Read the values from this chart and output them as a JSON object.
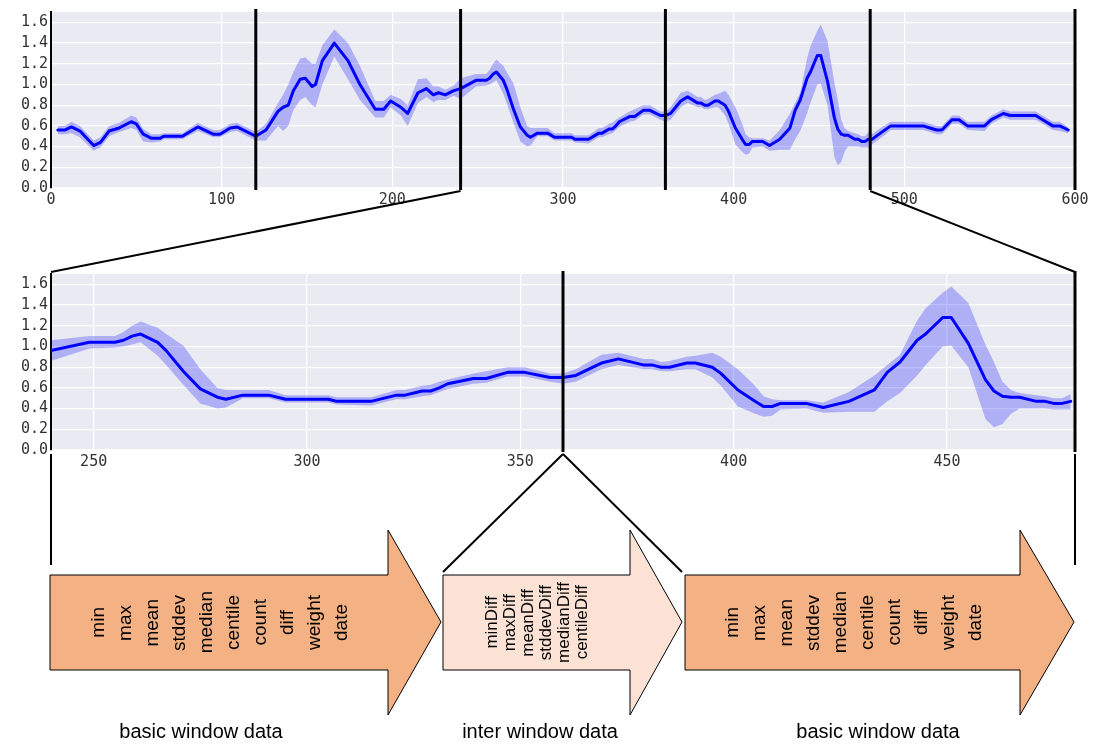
{
  "chart_data": [
    {
      "type": "line",
      "xlim": [
        0,
        600
      ],
      "xticks": [
        0,
        100,
        200,
        300,
        400,
        500,
        600
      ],
      "ylim": [
        0,
        1.7
      ],
      "yticks": [
        {
          "value": 0,
          "label": "0.0"
        },
        {
          "value": 0.2,
          "label": "0.2"
        },
        {
          "value": 0.4,
          "label": "0.4"
        },
        {
          "value": 0.6,
          "label": "0.6"
        },
        {
          "value": 0.8,
          "label": "0.8"
        },
        {
          "value": 1.0,
          "label": "1.0"
        },
        {
          "value": 1.2,
          "label": "1.2"
        },
        {
          "value": 1.4,
          "label": "1.4"
        },
        {
          "value": 1.6,
          "label": "1.6"
        }
      ],
      "grid": true,
      "ref_lines": [
        {
          "axis": "x",
          "value": 120
        },
        {
          "axis": "x",
          "value": 240
        },
        {
          "axis": "x",
          "value": 360
        },
        {
          "axis": "x",
          "value": 480
        },
        {
          "axis": "x",
          "value": 600
        }
      ],
      "series": [
        {
          "color": "#0000ff",
          "x": [
            4,
            8,
            12,
            17,
            25,
            29,
            34,
            40,
            47,
            50,
            54,
            59,
            64,
            66,
            77,
            86,
            95,
            99,
            105,
            109,
            120,
            126,
            133,
            136,
            139,
            142,
            146,
            149,
            153,
            155,
            159,
            166,
            174,
            181,
            190,
            195,
            199,
            205,
            209,
            215,
            220,
            224,
            227,
            231,
            236,
            240,
            249,
            255,
            257,
            259,
            261,
            265,
            267,
            271,
            275,
            279,
            281,
            285,
            291,
            295,
            305,
            307,
            315,
            321,
            323,
            327,
            329,
            331,
            333,
            339,
            342,
            347,
            351,
            357,
            360,
            363,
            369,
            373,
            379,
            381,
            383,
            385,
            389,
            391,
            395,
            397,
            401,
            405,
            407,
            409,
            411,
            417,
            421,
            427,
            433,
            436,
            439,
            443,
            445,
            449,
            451,
            455,
            459,
            461,
            463,
            465,
            467,
            471,
            473,
            475,
            477,
            479,
            481,
            486,
            492,
            511,
            515,
            519,
            522,
            528,
            532,
            537,
            547,
            551,
            558,
            562,
            577,
            582,
            587,
            591,
            596
          ],
          "values": [
            0.56,
            0.56,
            0.59,
            0.55,
            0.41,
            0.44,
            0.55,
            0.58,
            0.64,
            0.62,
            0.52,
            0.48,
            0.48,
            0.5,
            0.5,
            0.59,
            0.52,
            0.52,
            0.58,
            0.59,
            0.5,
            0.56,
            0.74,
            0.78,
            0.8,
            0.94,
            1.05,
            1.06,
            0.98,
            1.0,
            1.23,
            1.4,
            1.23,
            1.0,
            0.76,
            0.76,
            0.84,
            0.78,
            0.72,
            0.92,
            0.96,
            0.9,
            0.92,
            0.9,
            0.94,
            0.96,
            1.04,
            1.04,
            1.06,
            1.1,
            1.12,
            1.04,
            0.96,
            0.76,
            0.59,
            0.51,
            0.49,
            0.53,
            0.53,
            0.49,
            0.49,
            0.47,
            0.47,
            0.53,
            0.53,
            0.57,
            0.57,
            0.6,
            0.64,
            0.69,
            0.69,
            0.75,
            0.75,
            0.7,
            0.7,
            0.72,
            0.84,
            0.88,
            0.82,
            0.82,
            0.8,
            0.8,
            0.84,
            0.84,
            0.8,
            0.74,
            0.58,
            0.47,
            0.42,
            0.42,
            0.45,
            0.45,
            0.41,
            0.47,
            0.58,
            0.75,
            0.85,
            1.06,
            1.12,
            1.28,
            1.28,
            1.03,
            0.68,
            0.57,
            0.52,
            0.51,
            0.51,
            0.47,
            0.47,
            0.45,
            0.45,
            0.47,
            0.47,
            0.53,
            0.6,
            0.6,
            0.58,
            0.56,
            0.56,
            0.66,
            0.66,
            0.6,
            0.6,
            0.66,
            0.72,
            0.7,
            0.7,
            0.65,
            0.6,
            0.6,
            0.56
          ],
          "lower": [
            0.52,
            0.52,
            0.53,
            0.49,
            0.36,
            0.39,
            0.5,
            0.54,
            0.58,
            0.56,
            0.45,
            0.44,
            0.45,
            0.47,
            0.47,
            0.55,
            0.49,
            0.49,
            0.54,
            0.55,
            0.46,
            0.46,
            0.6,
            0.55,
            0.6,
            0.75,
            0.85,
            0.88,
            0.8,
            0.78,
            1.0,
            1.27,
            1.05,
            0.85,
            0.68,
            0.68,
            0.78,
            0.7,
            0.6,
            0.82,
            0.88,
            0.83,
            0.85,
            0.85,
            0.89,
            0.86,
            0.98,
            0.99,
            1.0,
            1.02,
            1.04,
            0.91,
            0.82,
            0.63,
            0.45,
            0.4,
            0.41,
            0.5,
            0.5,
            0.46,
            0.46,
            0.44,
            0.43,
            0.49,
            0.49,
            0.52,
            0.53,
            0.56,
            0.59,
            0.64,
            0.65,
            0.71,
            0.71,
            0.66,
            0.64,
            0.66,
            0.78,
            0.82,
            0.78,
            0.78,
            0.76,
            0.76,
            0.78,
            0.78,
            0.7,
            0.62,
            0.42,
            0.35,
            0.32,
            0.33,
            0.39,
            0.4,
            0.36,
            0.37,
            0.37,
            0.47,
            0.55,
            0.72,
            0.82,
            1.0,
            1.01,
            0.8,
            0.3,
            0.22,
            0.25,
            0.35,
            0.4,
            0.4,
            0.4,
            0.39,
            0.39,
            0.39,
            0.42,
            0.48,
            0.56,
            0.56,
            0.54,
            0.52,
            0.52,
            0.62,
            0.62,
            0.56,
            0.55,
            0.62,
            0.68,
            0.66,
            0.66,
            0.61,
            0.56,
            0.55,
            0.53
          ],
          "upper": [
            0.6,
            0.6,
            0.64,
            0.6,
            0.46,
            0.49,
            0.6,
            0.63,
            0.7,
            0.68,
            0.57,
            0.52,
            0.52,
            0.53,
            0.53,
            0.63,
            0.56,
            0.56,
            0.62,
            0.63,
            0.54,
            0.62,
            0.82,
            0.9,
            1.0,
            1.12,
            1.25,
            1.26,
            1.2,
            1.2,
            1.38,
            1.53,
            1.4,
            1.18,
            0.84,
            0.84,
            0.9,
            0.86,
            0.8,
            1.05,
            1.06,
            0.98,
            0.98,
            0.95,
            0.99,
            1.06,
            1.1,
            1.1,
            1.14,
            1.2,
            1.24,
            1.18,
            1.12,
            1.01,
            0.78,
            0.6,
            0.58,
            0.58,
            0.58,
            0.53,
            0.53,
            0.51,
            0.51,
            0.58,
            0.58,
            0.62,
            0.63,
            0.66,
            0.68,
            0.74,
            0.76,
            0.8,
            0.8,
            0.74,
            0.74,
            0.78,
            0.92,
            0.94,
            0.88,
            0.88,
            0.85,
            0.86,
            0.9,
            0.91,
            0.94,
            0.9,
            0.78,
            0.62,
            0.52,
            0.49,
            0.48,
            0.48,
            0.46,
            0.56,
            0.72,
            0.82,
            0.92,
            1.25,
            1.37,
            1.52,
            1.58,
            1.42,
            1.02,
            0.85,
            0.66,
            0.58,
            0.55,
            0.53,
            0.52,
            0.5,
            0.5,
            0.54,
            0.52,
            0.58,
            0.64,
            0.64,
            0.62,
            0.6,
            0.6,
            0.7,
            0.7,
            0.64,
            0.64,
            0.7,
            0.76,
            0.74,
            0.74,
            0.69,
            0.64,
            0.64,
            0.59
          ]
        }
      ]
    },
    {
      "type": "line",
      "xlim": [
        240,
        480
      ],
      "xticks": [
        250,
        300,
        350,
        400,
        450
      ],
      "ylim": [
        0,
        1.7
      ],
      "yticks": [
        {
          "value": 0,
          "label": "0.0"
        },
        {
          "value": 0.2,
          "label": "0.2"
        },
        {
          "value": 0.4,
          "label": "0.4"
        },
        {
          "value": 0.6,
          "label": "0.6"
        },
        {
          "value": 0.8,
          "label": "0.8"
        },
        {
          "value": 1.0,
          "label": "1.0"
        },
        {
          "value": 1.2,
          "label": "1.2"
        },
        {
          "value": 1.4,
          "label": "1.4"
        },
        {
          "value": 1.6,
          "label": "1.6"
        }
      ],
      "grid": true,
      "ref_lines": [
        {
          "axis": "x",
          "value": 360
        },
        {
          "axis": "x",
          "value": 480
        }
      ],
      "series": [
        {
          "color": "#0000ff",
          "x": [
            240,
            249,
            255,
            257,
            259,
            261,
            265,
            267,
            271,
            275,
            279,
            281,
            285,
            291,
            295,
            305,
            307,
            315,
            321,
            323,
            327,
            329,
            331,
            333,
            339,
            342,
            347,
            351,
            357,
            360,
            363,
            369,
            373,
            379,
            381,
            383,
            385,
            389,
            391,
            395,
            397,
            401,
            405,
            407,
            409,
            411,
            417,
            421,
            427,
            433,
            436,
            439,
            443,
            445,
            449,
            451,
            455,
            459,
            461,
            463,
            465,
            467,
            471,
            473,
            475,
            477,
            479
          ],
          "values": [
            0.96,
            1.04,
            1.04,
            1.06,
            1.1,
            1.12,
            1.04,
            0.96,
            0.76,
            0.59,
            0.51,
            0.49,
            0.53,
            0.53,
            0.49,
            0.49,
            0.47,
            0.47,
            0.53,
            0.53,
            0.57,
            0.57,
            0.6,
            0.64,
            0.69,
            0.69,
            0.75,
            0.75,
            0.7,
            0.7,
            0.72,
            0.84,
            0.88,
            0.82,
            0.82,
            0.8,
            0.8,
            0.84,
            0.84,
            0.8,
            0.74,
            0.58,
            0.47,
            0.42,
            0.42,
            0.45,
            0.45,
            0.41,
            0.47,
            0.58,
            0.75,
            0.85,
            1.06,
            1.12,
            1.28,
            1.28,
            1.03,
            0.68,
            0.57,
            0.52,
            0.51,
            0.51,
            0.47,
            0.47,
            0.45,
            0.45,
            0.47
          ],
          "lower": [
            0.86,
            0.98,
            0.99,
            1.0,
            1.02,
            1.04,
            0.91,
            0.82,
            0.63,
            0.45,
            0.4,
            0.41,
            0.5,
            0.5,
            0.46,
            0.46,
            0.44,
            0.43,
            0.49,
            0.49,
            0.52,
            0.53,
            0.56,
            0.59,
            0.64,
            0.65,
            0.71,
            0.71,
            0.66,
            0.64,
            0.66,
            0.78,
            0.82,
            0.78,
            0.78,
            0.76,
            0.76,
            0.78,
            0.78,
            0.7,
            0.62,
            0.42,
            0.35,
            0.32,
            0.33,
            0.39,
            0.4,
            0.36,
            0.37,
            0.37,
            0.47,
            0.55,
            0.72,
            0.82,
            1.0,
            1.01,
            0.8,
            0.3,
            0.22,
            0.25,
            0.35,
            0.4,
            0.4,
            0.4,
            0.39,
            0.39,
            0.39
          ],
          "upper": [
            1.06,
            1.1,
            1.1,
            1.14,
            1.2,
            1.24,
            1.18,
            1.12,
            1.01,
            0.78,
            0.6,
            0.58,
            0.58,
            0.58,
            0.53,
            0.53,
            0.51,
            0.51,
            0.58,
            0.58,
            0.62,
            0.63,
            0.66,
            0.68,
            0.74,
            0.76,
            0.8,
            0.8,
            0.74,
            0.74,
            0.78,
            0.92,
            0.94,
            0.88,
            0.88,
            0.85,
            0.86,
            0.9,
            0.91,
            0.94,
            0.9,
            0.78,
            0.62,
            0.52,
            0.49,
            0.48,
            0.48,
            0.46,
            0.56,
            0.72,
            0.82,
            0.92,
            1.25,
            1.37,
            1.52,
            1.58,
            1.42,
            1.02,
            0.85,
            0.66,
            0.58,
            0.55,
            0.53,
            0.52,
            0.5,
            0.5,
            0.54
          ]
        }
      ]
    },
    {
      "type": "other",
      "colors": [
        "#f4b183",
        "#fbe2d5",
        "#f4b183"
      ],
      "annotations": [
        "min\nmax\nmean\nstddev\nmedian\ncentile\ncount\ndiff\nweight\ndate",
        "basic window data",
        "minDiff\nmaxDiff\nmeanDiff\nstddevDiff\nmedianDiff\ncentileDiff",
        "inter window data",
        "min\nmax\nmean\nstddev\nmedian\ncentile\ncount\ndiff\nweight\ndate",
        "basic window data"
      ]
    }
  ]
}
